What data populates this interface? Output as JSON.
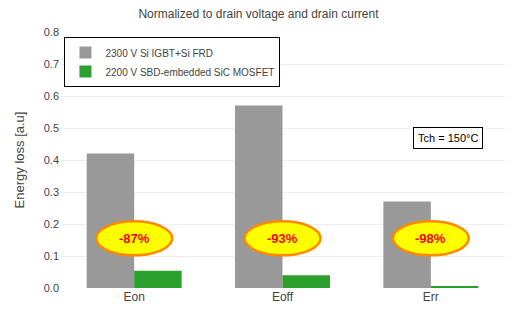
{
  "chart_data": {
    "type": "bar",
    "title": "Normalized to drain voltage and drain current",
    "ylabel": "Energy loss [a.u]",
    "categories": [
      "Eon",
      "Eoff",
      "Err"
    ],
    "series": [
      {
        "name": "2300 V Si IGBT+Si FRD",
        "color": "#999999",
        "values": [
          0.42,
          0.57,
          0.27
        ]
      },
      {
        "name": "2200 V SBD-embedded SiC MOSFET",
        "color": "#2ca02c",
        "values": [
          0.054,
          0.04,
          0.005
        ]
      }
    ],
    "ylim": [
      0,
      0.8
    ],
    "yticks": [
      {
        "value": 0,
        "label": "0.0"
      },
      0.1,
      0.2,
      0.3,
      0.4,
      0.5,
      0.6,
      0.7,
      0.8
    ],
    "grid": true,
    "legend": "upper left",
    "annotations": [
      {
        "text": "-87%",
        "x": "Eon"
      },
      {
        "text": "-93%",
        "x": "Eoff"
      },
      {
        "text": "-98%",
        "x": "Err"
      },
      {
        "text": "Tch = 150°C"
      }
    ]
  }
}
